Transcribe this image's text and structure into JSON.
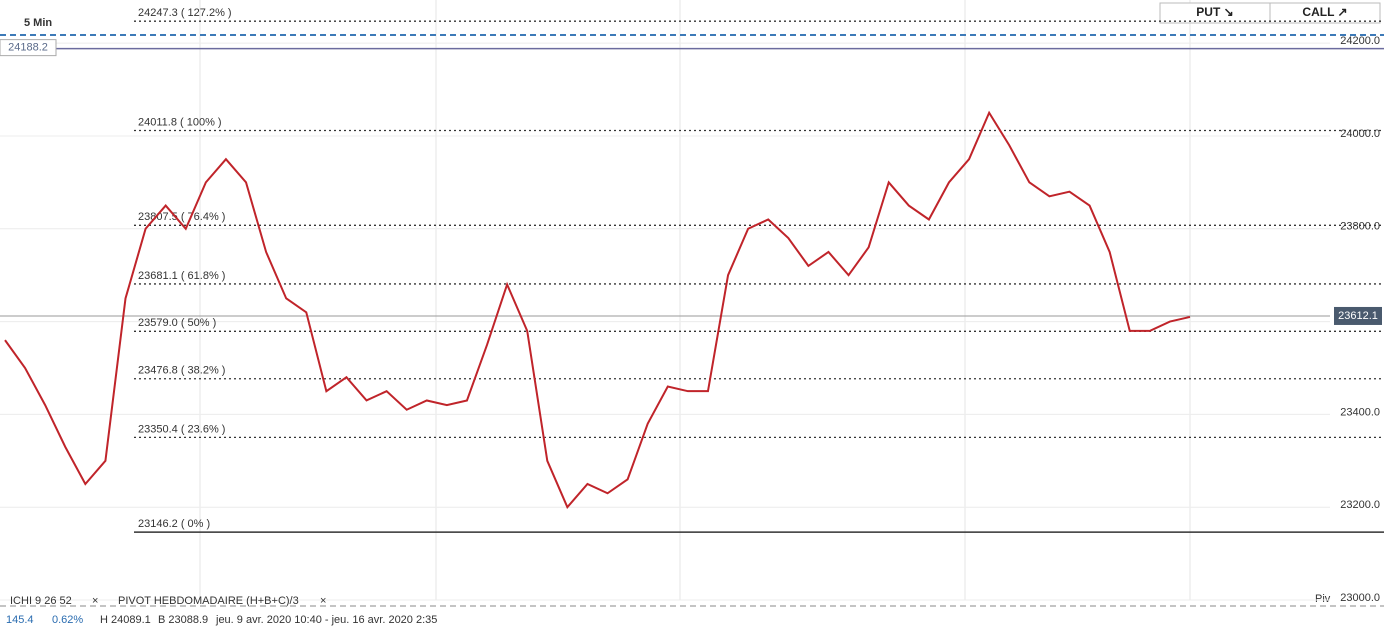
{
  "header": {
    "timeframe": "5 Min",
    "put": "PUT ↘",
    "call": "CALL ↗"
  },
  "chart_data": {
    "type": "line",
    "categories": [
      null,
      null,
      null,
      null,
      null,
      null,
      null,
      null,
      null,
      null,
      null,
      null,
      null,
      null,
      null,
      null,
      null,
      null,
      null,
      null,
      null,
      null,
      null,
      null,
      null,
      null,
      null,
      null,
      null,
      null,
      null,
      null,
      null,
      null,
      null,
      null,
      null,
      null,
      null,
      null,
      null,
      null,
      null,
      null,
      null,
      null,
      null,
      null,
      null,
      null,
      null,
      null,
      null,
      null,
      null,
      null,
      null,
      null,
      null,
      null
    ],
    "values": [
      23560,
      23500,
      23420,
      23330,
      23250,
      23300,
      23650,
      23800,
      23850,
      23800,
      23900,
      23950,
      23900,
      23750,
      23650,
      23620,
      23450,
      23480,
      23430,
      23450,
      23410,
      23430,
      23420,
      23430,
      23550,
      23680,
      23580,
      23300,
      23200,
      23250,
      23230,
      23260,
      23380,
      23460,
      23450,
      23450,
      23700,
      23800,
      23820,
      23780,
      23720,
      23750,
      23700,
      23760,
      23900,
      23850,
      23820,
      23900,
      23950,
      24050,
      23980,
      23900,
      23870,
      23880,
      23850,
      23750,
      23580,
      23580,
      23600,
      23610
    ],
    "color": "#c0242a",
    "ylim": [
      23000,
      24293
    ],
    "yticks": [
      {
        "value": 23000,
        "label": "23000.0"
      },
      {
        "value": 23200,
        "label": "23200.0"
      },
      {
        "value": 23400,
        "label": "23400.0"
      },
      {
        "value": 23600,
        "label": "23600.0"
      },
      {
        "value": 23800,
        "label": "23800.0"
      },
      {
        "value": 24000,
        "label": "24000.0"
      },
      {
        "value": 24200,
        "label": "24200.0"
      }
    ],
    "grid": true,
    "fib_levels": [
      {
        "value": 24247.3,
        "label": "24247.3 ( 127.2% )"
      },
      {
        "value": 24011.8,
        "label": "24011.8 ( 100% )"
      },
      {
        "value": 23807.5,
        "label": "23807.5 ( 76.4% )"
      },
      {
        "value": 23681.1,
        "label": "23681.1 ( 61.8% )"
      },
      {
        "value": 23579.0,
        "label": "23579.0 ( 50% )"
      },
      {
        "value": 23476.8,
        "label": "23476.8 ( 38.2% )"
      },
      {
        "value": 23350.4,
        "label": "23350.4 ( 23.6% )"
      },
      {
        "value": 23146.2,
        "label": "23146.2 ( 0% )"
      }
    ],
    "last_price": 23612.1,
    "marker_price": 24188.2,
    "pivot_label": "Piv"
  },
  "footer": {
    "ichi": "ICHI  9  26  52",
    "pivot": "PIVOT  HEBDOMADAIRE  (H+B+C)/3",
    "change": "145.4",
    "change_pct": "0.62%",
    "high": "H 24089.1",
    "low": "B 23088.9",
    "range": "jeu. 9 avr. 2020 10:40 - jeu. 16 avr. 2020 2:35"
  }
}
